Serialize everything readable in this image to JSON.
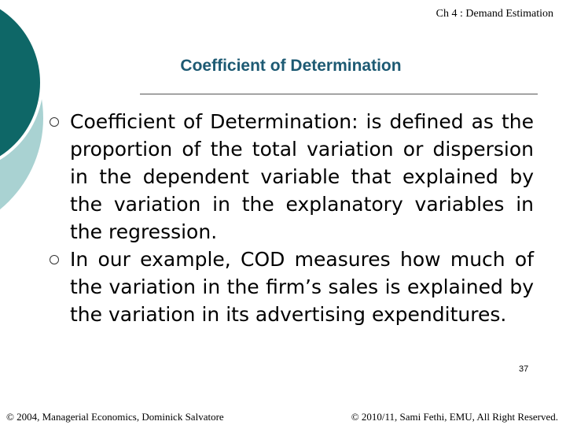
{
  "header": {
    "chapter": "Ch 4 : Demand Estimation",
    "title": "Coefficient of Determination"
  },
  "bullets": [
    "Coefficient of Determination: is defined as the proportion of the total variation or dispersion in the dependent variable that explained by the variation in the explanatory variables in the regression.",
    "In our example, COD measures how much of the variation in the firm’s sales is explained by the variation in its advertising expenditures."
  ],
  "footer": {
    "page": "37",
    "left": "© 2004, Managerial Economics, Dominick Salvatore",
    "right": "© 2010/11, Sami Fethi, EMU, All Right Reserved."
  }
}
